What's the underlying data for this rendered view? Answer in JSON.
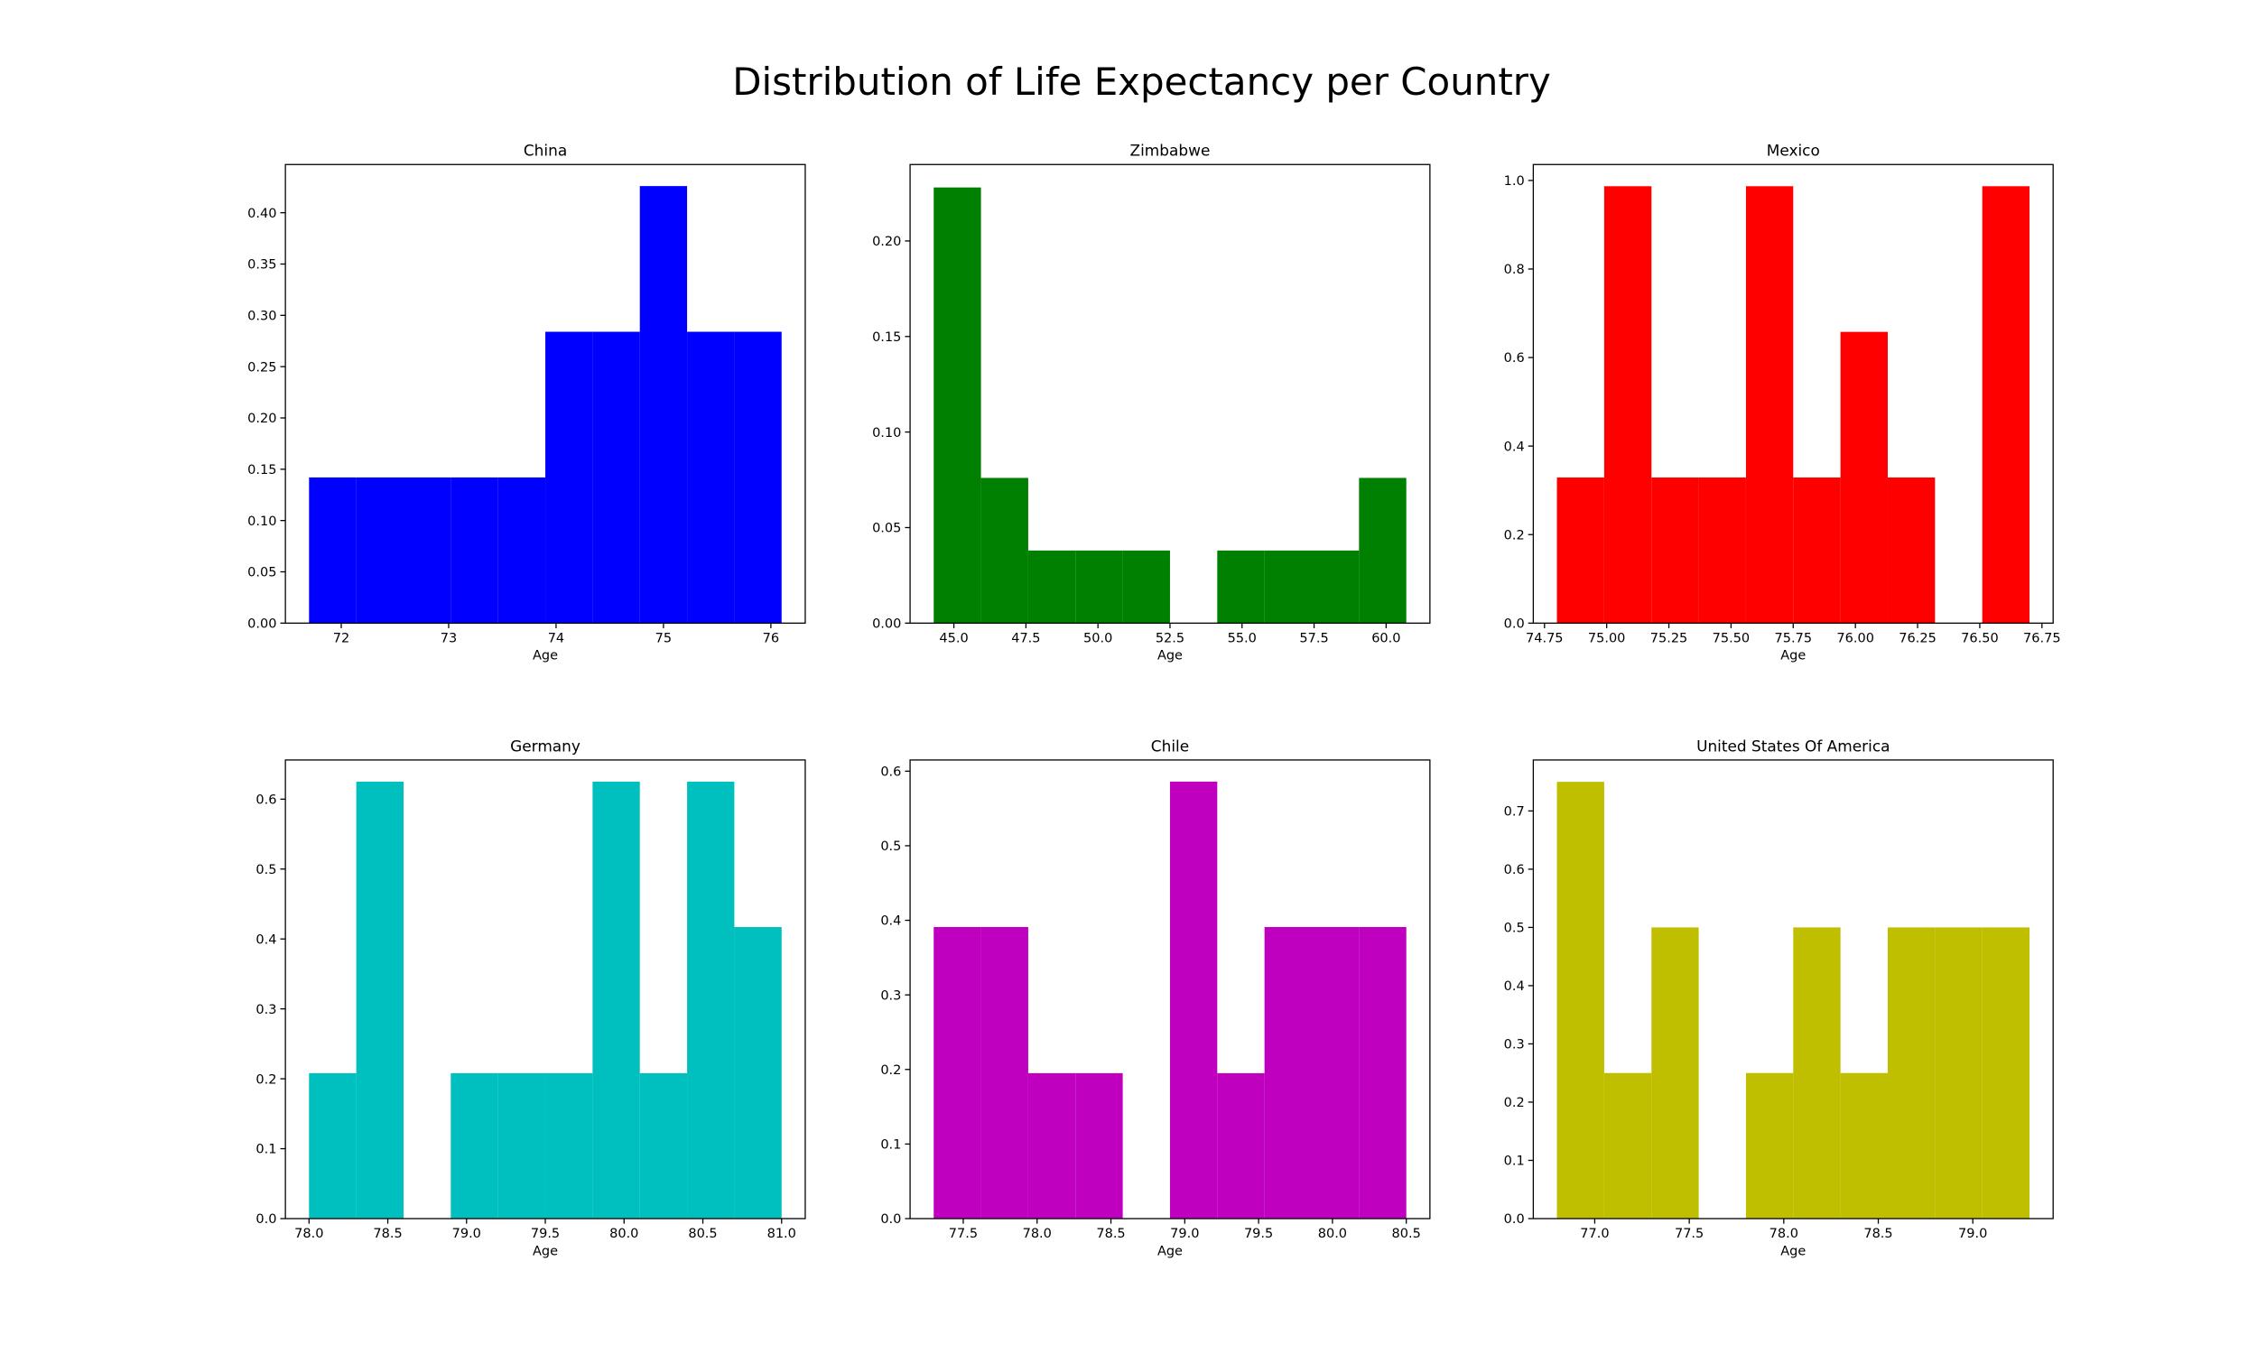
{
  "title": "Distribution of Life Expectancy per Country",
  "chart_data": [
    {
      "type": "histogram",
      "title": "China",
      "xlabel": "Age",
      "color": "#0000ff",
      "bins": [
        71.7,
        72.14,
        72.58,
        73.02,
        73.46,
        73.9,
        74.34,
        74.78,
        75.22,
        75.66,
        76.1
      ],
      "values": [
        0.142,
        0.142,
        0.142,
        0.142,
        0.142,
        0.284,
        0.284,
        0.426,
        0.284,
        0.284
      ],
      "xlim": [
        71.48,
        76.32
      ],
      "ylim": [
        0,
        0.447
      ],
      "xticks": [
        72,
        73,
        74,
        75,
        76
      ],
      "yticks": [
        {
          "value": 0,
          "label": "0.00"
        },
        {
          "value": 0.05,
          "label": "0.05"
        },
        {
          "value": 0.1,
          "label": "0.10"
        },
        {
          "value": 0.15,
          "label": "0.15"
        },
        {
          "value": 0.2,
          "label": "0.20"
        },
        {
          "value": 0.25,
          "label": "0.25"
        },
        {
          "value": 0.3,
          "label": "0.30"
        },
        {
          "value": 0.35,
          "label": "0.35"
        },
        {
          "value": 0.4,
          "label": "0.40"
        }
      ]
    },
    {
      "type": "histogram",
      "title": "Zimbabwe",
      "xlabel": "Age",
      "color": "#008000",
      "bins": [
        44.3,
        45.94,
        47.58,
        49.22,
        50.86,
        52.5,
        54.14,
        55.78,
        57.42,
        59.06,
        60.7
      ],
      "values": [
        0.228,
        0.076,
        0.038,
        0.038,
        0.038,
        0,
        0.038,
        0.038,
        0.038,
        0.076
      ],
      "xlim": [
        43.48,
        61.52
      ],
      "ylim": [
        0,
        0.24
      ],
      "xticks": [
        {
          "value": 45,
          "label": "45.0"
        },
        {
          "value": 47.5,
          "label": "47.5"
        },
        {
          "value": 50,
          "label": "50.0"
        },
        {
          "value": 52.5,
          "label": "52.5"
        },
        {
          "value": 55,
          "label": "55.0"
        },
        {
          "value": 57.5,
          "label": "57.5"
        },
        {
          "value": 60,
          "label": "60.0"
        }
      ],
      "yticks": [
        {
          "value": 0,
          "label": "0.00"
        },
        {
          "value": 0.05,
          "label": "0.05"
        },
        {
          "value": 0.1,
          "label": "0.10"
        },
        {
          "value": 0.15,
          "label": "0.15"
        },
        {
          "value": 0.2,
          "label": "0.20"
        }
      ]
    },
    {
      "type": "histogram",
      "title": "Mexico",
      "xlabel": "Age",
      "color": "#ff0000",
      "bins": [
        74.8,
        74.99,
        75.18,
        75.37,
        75.56,
        75.75,
        75.94,
        76.13,
        76.32,
        76.51,
        76.7
      ],
      "values": [
        0.329,
        0.987,
        0.329,
        0.329,
        0.987,
        0.329,
        0.658,
        0.329,
        0,
        0.987
      ],
      "xlim": [
        74.705,
        76.795
      ],
      "ylim": [
        0,
        1.036
      ],
      "xticks": [
        {
          "value": 74.75,
          "label": "74.75"
        },
        {
          "value": 75,
          "label": "75.00"
        },
        {
          "value": 75.25,
          "label": "75.25"
        },
        {
          "value": 75.5,
          "label": "75.50"
        },
        {
          "value": 75.75,
          "label": "75.75"
        },
        {
          "value": 76,
          "label": "76.00"
        },
        {
          "value": 76.25,
          "label": "76.25"
        },
        {
          "value": 76.5,
          "label": "76.50"
        },
        {
          "value": 76.75,
          "label": "76.75"
        }
      ],
      "yticks": [
        {
          "value": 0,
          "label": "0.0"
        },
        0.2,
        0.4,
        0.6,
        0.8,
        {
          "value": 1,
          "label": "1.0"
        }
      ]
    },
    {
      "type": "histogram",
      "title": "Germany",
      "xlabel": "Age",
      "color": "#00bfbf",
      "bins": [
        78.0,
        78.3,
        78.6,
        78.9,
        79.2,
        79.5,
        79.8,
        80.1,
        80.4,
        80.7,
        81.0
      ],
      "values": [
        0.208,
        0.625,
        0,
        0.208,
        0.208,
        0.208,
        0.625,
        0.208,
        0.625,
        0.417
      ],
      "xlim": [
        77.85,
        81.15
      ],
      "ylim": [
        0,
        0.656
      ],
      "xticks": [
        {
          "value": 78,
          "label": "78.0"
        },
        78.5,
        {
          "value": 79,
          "label": "79.0"
        },
        79.5,
        {
          "value": 80,
          "label": "80.0"
        },
        80.5,
        {
          "value": 81,
          "label": "81.0"
        }
      ],
      "yticks": [
        {
          "value": 0,
          "label": "0.0"
        },
        0.1,
        0.2,
        0.3,
        0.4,
        0.5,
        0.6
      ]
    },
    {
      "type": "histogram",
      "title": "Chile",
      "xlabel": "Age",
      "color": "#bf00bf",
      "bins": [
        77.3,
        77.62,
        77.94,
        78.26,
        78.58,
        78.9,
        79.22,
        79.54,
        79.86,
        80.18,
        80.5
      ],
      "values": [
        0.391,
        0.391,
        0.195,
        0.195,
        0,
        0.586,
        0.195,
        0.391,
        0.391,
        0.391
      ],
      "xlim": [
        77.14,
        80.66
      ],
      "ylim": [
        0,
        0.615
      ],
      "xticks": [
        77.5,
        {
          "value": 78,
          "label": "78.0"
        },
        78.5,
        {
          "value": 79,
          "label": "79.0"
        },
        79.5,
        {
          "value": 80,
          "label": "80.0"
        },
        80.5
      ],
      "yticks": [
        {
          "value": 0,
          "label": "0.0"
        },
        0.1,
        0.2,
        0.3,
        0.4,
        0.5,
        0.6
      ]
    },
    {
      "type": "histogram",
      "title": "United States Of America",
      "xlabel": "Age",
      "color": "#bfbf00",
      "bins": [
        76.8,
        77.05,
        77.3,
        77.55,
        77.8,
        78.05,
        78.3,
        78.55,
        78.8,
        79.05,
        79.3
      ],
      "values": [
        0.75,
        0.25,
        0.5,
        0,
        0.25,
        0.5,
        0.25,
        0.5,
        0.5,
        0.5
      ],
      "xlim": [
        76.675,
        79.425
      ],
      "ylim": [
        0,
        0.7875
      ],
      "xticks": [
        {
          "value": 77,
          "label": "77.0"
        },
        77.5,
        {
          "value": 78,
          "label": "78.0"
        },
        78.5,
        {
          "value": 79,
          "label": "79.0"
        }
      ],
      "yticks": [
        {
          "value": 0,
          "label": "0.0"
        },
        0.1,
        0.2,
        0.3,
        0.4,
        0.5,
        0.6,
        0.7
      ]
    }
  ]
}
